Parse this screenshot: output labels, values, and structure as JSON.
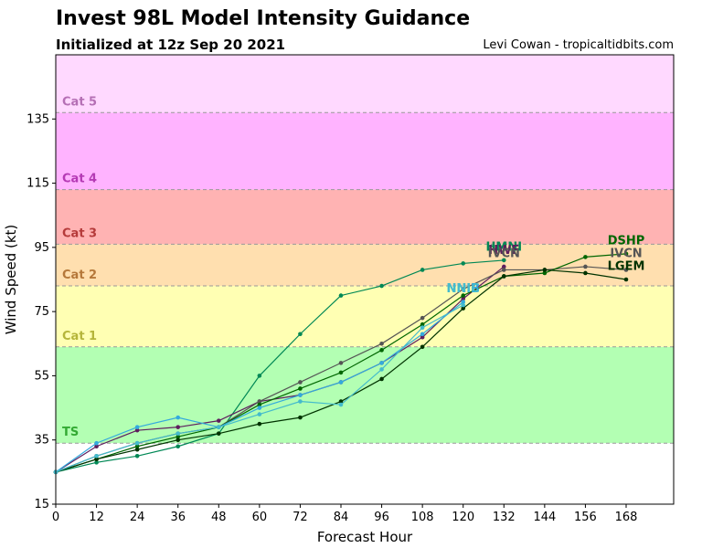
{
  "header": {
    "title": "Invest 98L Model Intensity Guidance",
    "subtitle": "Initialized at 12z Sep 20 2021",
    "credit": "Levi Cowan - tropicaltidbits.com"
  },
  "chart_data": {
    "type": "line",
    "xlabel": "Forecast Hour",
    "ylabel": "Wind Speed (kt)",
    "xlim": [
      0,
      182
    ],
    "ylim": [
      15,
      155
    ],
    "xticks": [
      0,
      12,
      24,
      36,
      48,
      60,
      72,
      84,
      96,
      108,
      120,
      132,
      144,
      156,
      168
    ],
    "yticks": [
      15,
      35,
      55,
      75,
      95,
      115,
      135
    ],
    "bands": [
      {
        "label": "TS",
        "from": 34,
        "to": 64,
        "color": "#b3ffb3",
        "label_color": "#33aa33"
      },
      {
        "label": "Cat 1",
        "from": 64,
        "to": 83,
        "color": "#ffffb3",
        "label_color": "#b5b53a"
      },
      {
        "label": "Cat 2",
        "from": 83,
        "to": 96,
        "color": "#ffdfaf",
        "label_color": "#b5783a"
      },
      {
        "label": "Cat 3",
        "from": 96,
        "to": 113,
        "color": "#ffb3b3",
        "label_color": "#b53a3a"
      },
      {
        "label": "Cat 4",
        "from": 113,
        "to": 137,
        "color": "#ffb3ff",
        "label_color": "#b53ab5"
      },
      {
        "label": "Cat 5",
        "from": 137,
        "to": 155,
        "color": "#ffd9ff",
        "label_color": "#b56fb5"
      }
    ],
    "series": [
      {
        "name": "HMNI",
        "color": "#008855",
        "x": [
          0,
          12,
          24,
          36,
          48,
          60,
          72,
          84,
          96,
          108,
          120,
          132
        ],
        "values": [
          25,
          28,
          30,
          33,
          37,
          55,
          68,
          80,
          83,
          88,
          90,
          91
        ]
      },
      {
        "name": "HWF",
        "color": "#5e1e5e",
        "x": [
          0,
          12,
          24,
          36,
          48,
          60,
          72,
          84,
          96,
          108,
          120,
          132
        ],
        "values": [
          25,
          33,
          38,
          39,
          41,
          47,
          49,
          53,
          59,
          67,
          79,
          89
        ]
      },
      {
        "name": "IVCN",
        "color": "#555555",
        "x": [
          0,
          12,
          24,
          36,
          48,
          60,
          72,
          84,
          96,
          108,
          120,
          132,
          144,
          156,
          168
        ],
        "values": [
          25,
          30,
          34,
          37,
          39,
          47,
          53,
          59,
          65,
          73,
          82,
          88,
          88,
          89,
          88
        ]
      },
      {
        "name": "DSHP",
        "color": "#006600",
        "x": [
          0,
          12,
          24,
          36,
          48,
          60,
          72,
          84,
          96,
          108,
          120,
          132,
          144,
          156,
          168
        ],
        "values": [
          25,
          29,
          33,
          36,
          39,
          46,
          51,
          56,
          63,
          71,
          80,
          86,
          87,
          92,
          93
        ]
      },
      {
        "name": "LGEM",
        "color": "#003300",
        "x": [
          0,
          12,
          24,
          36,
          48,
          60,
          72,
          84,
          96,
          108,
          120,
          132,
          144,
          156,
          168
        ],
        "values": [
          25,
          29,
          32,
          35,
          37,
          40,
          42,
          47,
          54,
          64,
          76,
          86,
          88,
          87,
          85
        ]
      },
      {
        "name": "NNIB",
        "color": "#33aadd",
        "x": [
          0,
          12,
          24,
          36,
          48,
          60,
          72,
          84,
          96,
          108,
          120
        ],
        "values": [
          25,
          34,
          39,
          42,
          39,
          45,
          49,
          53,
          59,
          68,
          78
        ]
      },
      {
        "name": "NNIC",
        "color": "#44bbcc",
        "x": [
          0,
          12,
          24,
          36,
          48,
          60,
          72,
          84,
          96,
          108,
          120
        ],
        "values": [
          25,
          30,
          34,
          37,
          39,
          43,
          47,
          46,
          57,
          70,
          77
        ]
      }
    ],
    "end_labels": [
      {
        "text": "HMNI",
        "x": 132,
        "y": 94,
        "color": "#008855"
      },
      {
        "text": "HWF",
        "x": 132,
        "y": 93,
        "color": "#5e1e5e"
      },
      {
        "text": "IVCN",
        "x": 132,
        "y": 92,
        "color": "#555555"
      },
      {
        "text": "NNIB",
        "x": 120,
        "y": 81,
        "color": "#33aadd"
      },
      {
        "text": "NNIC",
        "x": 120,
        "y": 81,
        "color": "#44bbcc"
      },
      {
        "text": "DSHP",
        "x": 168,
        "y": 96,
        "color": "#006600"
      },
      {
        "text": "IVCN",
        "x": 168,
        "y": 92,
        "color": "#555555"
      },
      {
        "text": "LGEM",
        "x": 168,
        "y": 88,
        "color": "#003300"
      }
    ]
  }
}
